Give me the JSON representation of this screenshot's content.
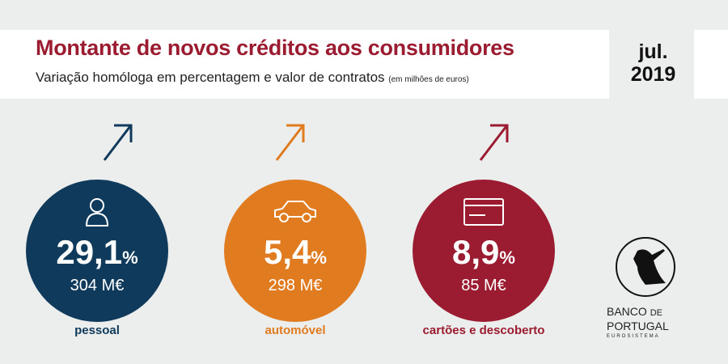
{
  "header": {
    "title": "Montante de novos créditos aos consumidores",
    "subtitle": "Variação homóloga em percentagem e valor de contratos",
    "unit_note": "(em milhões de euros)",
    "month": "jul.",
    "year": "2019"
  },
  "items": [
    {
      "category": "pessoal",
      "change": "29,1",
      "pct_sign": "%",
      "amount": "304 M€",
      "icon": "person-icon",
      "color": "#0f3a5c",
      "trend": "up"
    },
    {
      "category": "automóvel",
      "change": "5,4",
      "pct_sign": "%",
      "amount": "298 M€",
      "icon": "car-icon",
      "color": "#e07b20",
      "trend": "up"
    },
    {
      "category": "cartões e descoberto",
      "change": "8,9",
      "pct_sign": "%",
      "amount": "85 M€",
      "icon": "card-icon",
      "color": "#9b1b30",
      "trend": "up"
    }
  ],
  "logo": {
    "line1": "BANCO",
    "line1b": "DE",
    "line2": "PORTUGAL",
    "line3": "EUROSISTEMA"
  }
}
